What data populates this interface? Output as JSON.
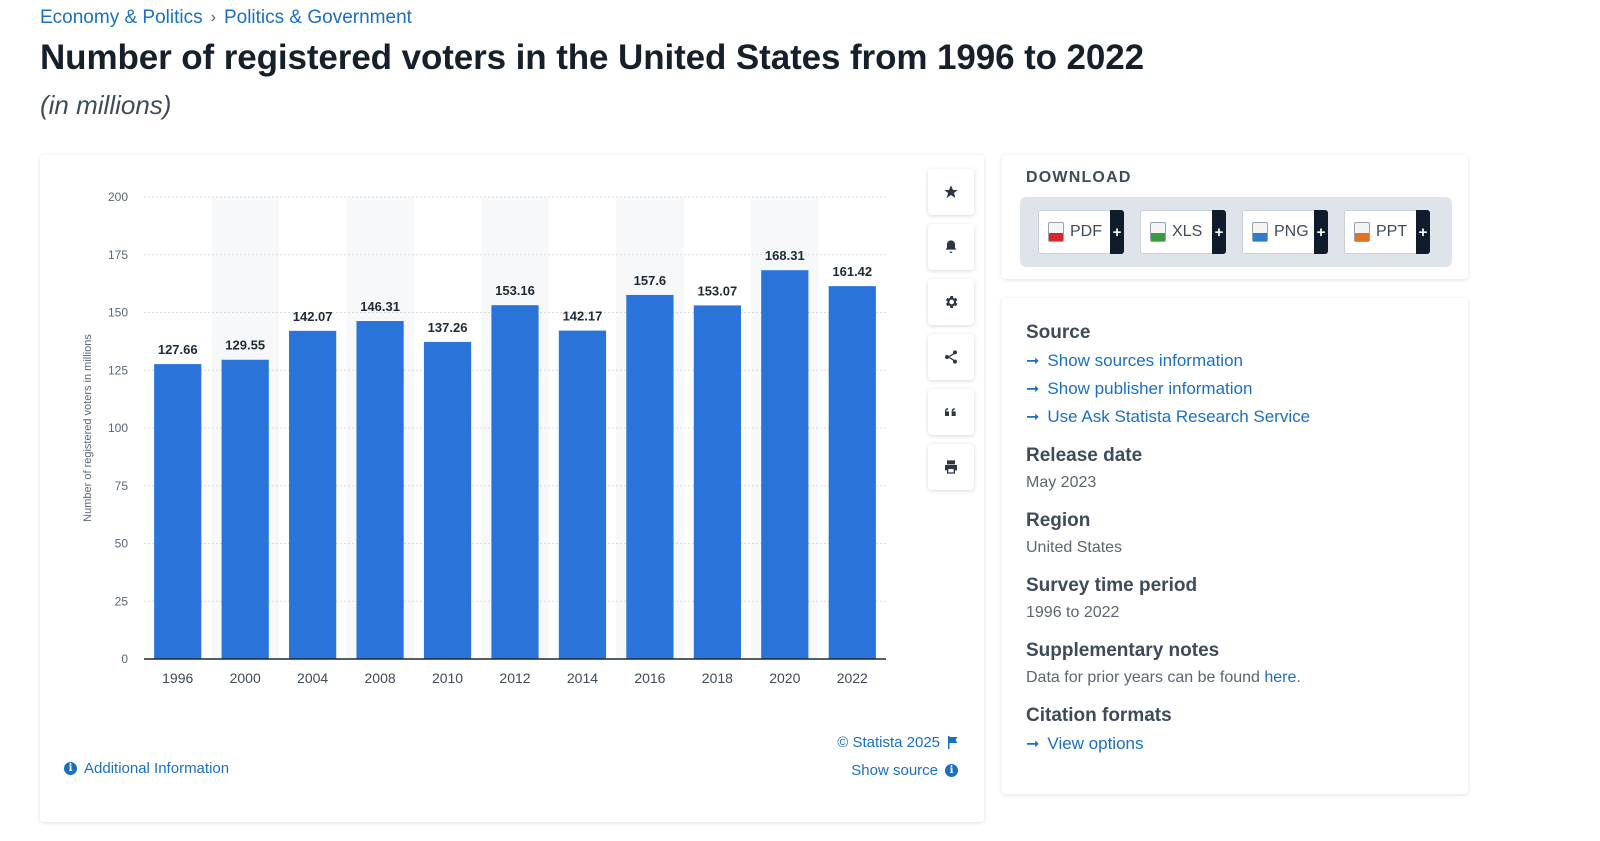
{
  "breadcrumb": {
    "item1": "Economy & Politics",
    "separator": "›",
    "item2": "Politics & Government"
  },
  "title": "Number of registered voters in the United States from 1996 to 2022",
  "subtitle": "(in millions)",
  "chart_data": {
    "type": "bar",
    "categories": [
      "1996",
      "2000",
      "2004",
      "2008",
      "2010",
      "2012",
      "2014",
      "2016",
      "2018",
      "2020",
      "2022"
    ],
    "values": [
      127.66,
      129.55,
      142.07,
      146.31,
      137.26,
      153.16,
      142.17,
      157.6,
      153.07,
      168.31,
      161.42
    ],
    "value_labels": [
      "127.66",
      "129.55",
      "142.07",
      "146.31",
      "137.26",
      "153.16",
      "142.17",
      "157.6",
      "153.07",
      "168.31",
      "161.42"
    ],
    "ylabel": "Number of registered voters in millions",
    "yticks": [
      0,
      25,
      50,
      75,
      100,
      125,
      150,
      175,
      200
    ],
    "ylim": [
      0,
      200
    ],
    "grid": true,
    "bar_color": "#2a74d9"
  },
  "chart_footer": {
    "copyright": "© Statista 2025",
    "show_source": "Show source",
    "additional_info": "Additional Information"
  },
  "toolbar_icons": [
    "star-icon",
    "bell-icon",
    "gear-icon",
    "share-icon",
    "quote-icon",
    "print-icon"
  ],
  "download": {
    "title": "DOWNLOAD",
    "buttons": [
      {
        "label": "PDF",
        "color": "#d9262b"
      },
      {
        "label": "XLS",
        "color": "#3b9a3b"
      },
      {
        "label": "PNG",
        "color": "#2f7dc9"
      },
      {
        "label": "PPT",
        "color": "#e07423"
      }
    ],
    "plus": "+"
  },
  "meta": {
    "source_title": "Source",
    "source_links": [
      "Show sources information",
      "Show publisher information",
      "Use Ask Statista Research Service"
    ],
    "release_title": "Release date",
    "release_value": "May 2023",
    "region_title": "Region",
    "region_value": "United States",
    "survey_title": "Survey time period",
    "survey_value": "1996 to 2022",
    "notes_title": "Supplementary notes",
    "notes_text": "Data for prior years can be found ",
    "notes_link": "here",
    "notes_end": ".",
    "citation_title": "Citation formats",
    "citation_link": "View options"
  }
}
